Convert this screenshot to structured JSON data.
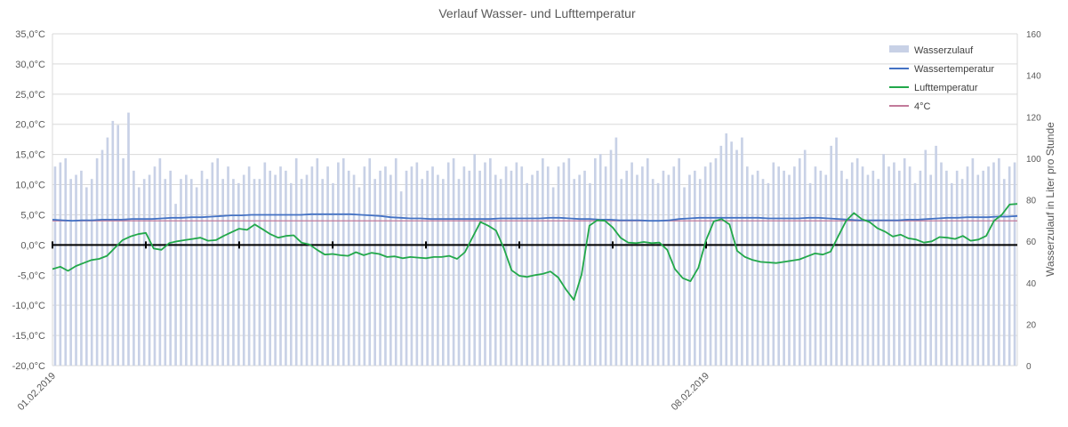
{
  "chart_data": {
    "type": "bar+line",
    "title": "Verlauf Wasser- und Lufttemperatur",
    "xlabel": "",
    "ylabel": "",
    "y2label": "Wasserzulauf in Liter pro Stunde",
    "ylim": [
      -20,
      35
    ],
    "y2lim": [
      0,
      160
    ],
    "y_ticks": [
      "35,0°C",
      "30,0°C",
      "25,0°C",
      "20,0°C",
      "15,0°C",
      "10,0°C",
      "5,0°C",
      "0,0°C",
      "-5,0°C",
      "-10,0°C",
      "-15,0°C",
      "-20,0°C"
    ],
    "y2_ticks": [
      "160",
      "140",
      "120",
      "100",
      "80",
      "60",
      "40",
      "20",
      "0"
    ],
    "x_labels": [
      {
        "label": "01.02.2019",
        "index": 0
      },
      {
        "label": "08.02.2019",
        "index": 168
      }
    ],
    "day_tick_indices": [
      0,
      24,
      48,
      72,
      96,
      120,
      144,
      168
    ],
    "grid": true,
    "legend_position": "top-right",
    "legend": [
      {
        "name": "Wasserzulauf",
        "kind": "bar",
        "color": "#c8d1e6"
      },
      {
        "name": "Wassertemperatur",
        "kind": "line",
        "color": "#4472c4"
      },
      {
        "name": "Lufttemperatur",
        "kind": "line",
        "color": "#22a84a"
      },
      {
        "name": "4°C",
        "kind": "line",
        "color": "#c27a9a"
      }
    ],
    "colors": {
      "bars": "#c8d1e6",
      "water": "#4472c4",
      "air": "#22a84a",
      "ref": "#c27a9a",
      "zero_axis": "#000000",
      "grid": "#d9d9d9"
    },
    "series": [
      {
        "name": "Wasserzulauf",
        "axis": "secondary",
        "unit": "Liter pro Stunde",
        "values": [
          96,
          98,
          100,
          90,
          92,
          94,
          86,
          90,
          100,
          104,
          110,
          118,
          116,
          100,
          122,
          94,
          86,
          90,
          92,
          96,
          100,
          90,
          94,
          78,
          90,
          92,
          90,
          86,
          94,
          90,
          98,
          100,
          90,
          96,
          90,
          88,
          92,
          96,
          90,
          90,
          98,
          94,
          92,
          96,
          94,
          88,
          100,
          90,
          92,
          96,
          100,
          90,
          96,
          88,
          98,
          100,
          94,
          92,
          86,
          96,
          100,
          90,
          94,
          96,
          92,
          100,
          84,
          94,
          96,
          98,
          90,
          94,
          96,
          92,
          90,
          98,
          100,
          90,
          96,
          94,
          102,
          94,
          98,
          100,
          92,
          90,
          96,
          94,
          98,
          96,
          88,
          92,
          94,
          100,
          96,
          86,
          96,
          98,
          100,
          90,
          92,
          94,
          88,
          100,
          102,
          96,
          104,
          110,
          90,
          94,
          98,
          92,
          96,
          100,
          90,
          88,
          94,
          92,
          96,
          100,
          86,
          92,
          94,
          90,
          96,
          98,
          100,
          106,
          112,
          108,
          104,
          110,
          96,
          92,
          94,
          90,
          88,
          98,
          96,
          94,
          92,
          96,
          100,
          104,
          88,
          96,
          94,
          92,
          106,
          110,
          94,
          90,
          98,
          100,
          96,
          92,
          94,
          90,
          102,
          96,
          98,
          94,
          100,
          96,
          88,
          94,
          104,
          92,
          106,
          98,
          94,
          88,
          94,
          90,
          96,
          100,
          92,
          94,
          96,
          98,
          100,
          90,
          96,
          98
        ]
      },
      {
        "name": "Wassertemperatur",
        "axis": "primary",
        "values": [
          4.2,
          4.1,
          4.0,
          4.1,
          4.1,
          4.2,
          4.2,
          4.2,
          4.3,
          4.3,
          4.3,
          4.4,
          4.5,
          4.5,
          4.6,
          4.6,
          4.7,
          4.8,
          4.9,
          4.9,
          5.0,
          5.0,
          5.0,
          5.0,
          5.0,
          5.0,
          5.1,
          5.1,
          5.1,
          5.1,
          5.1,
          5.0,
          4.9,
          4.8,
          4.6,
          4.5,
          4.4,
          4.4,
          4.3,
          4.3,
          4.3,
          4.3,
          4.3,
          4.3,
          4.3,
          4.4,
          4.4,
          4.4,
          4.4,
          4.4,
          4.5,
          4.5,
          4.4,
          4.3,
          4.3,
          4.2,
          4.2,
          4.1,
          4.1,
          4.1,
          4.0,
          4.0,
          4.1,
          4.3,
          4.4,
          4.5,
          4.5,
          4.5,
          4.5,
          4.5,
          4.5,
          4.5,
          4.4,
          4.4,
          4.4,
          4.4,
          4.5,
          4.5,
          4.4,
          4.3,
          4.2,
          4.1,
          4.1,
          4.1,
          4.1,
          4.1,
          4.2,
          4.2,
          4.3,
          4.4,
          4.5,
          4.5,
          4.6,
          4.6,
          4.6,
          4.7,
          4.7,
          4.8
        ]
      },
      {
        "name": "Lufttemperatur",
        "axis": "primary",
        "points": [
          [
            0,
            -4
          ],
          [
            2,
            -3.6
          ],
          [
            4,
            -4.3
          ],
          [
            6,
            -3.5
          ],
          [
            8,
            -3
          ],
          [
            10,
            -2.5
          ],
          [
            12,
            -2.3
          ],
          [
            14,
            -1.8
          ],
          [
            16,
            -0.5
          ],
          [
            18,
            0.8
          ],
          [
            20,
            1.4
          ],
          [
            22,
            1.8
          ],
          [
            24,
            2.0
          ],
          [
            26,
            -0.6
          ],
          [
            28,
            -0.8
          ],
          [
            30,
            0.3
          ],
          [
            32,
            0.6
          ],
          [
            34,
            0.8
          ],
          [
            36,
            1.0
          ],
          [
            38,
            1.2
          ],
          [
            40,
            0.7
          ],
          [
            42,
            0.8
          ],
          [
            44,
            1.5
          ],
          [
            46,
            2.1
          ],
          [
            48,
            2.7
          ],
          [
            50,
            2.5
          ],
          [
            52,
            3.4
          ],
          [
            54,
            2.6
          ],
          [
            56,
            1.8
          ],
          [
            58,
            1.2
          ],
          [
            60,
            1.5
          ],
          [
            62,
            1.6
          ],
          [
            64,
            0.4
          ],
          [
            66,
            0.1
          ],
          [
            68,
            -0.8
          ],
          [
            70,
            -1.6
          ],
          [
            72,
            -1.5
          ],
          [
            74,
            -1.7
          ],
          [
            76,
            -1.8
          ],
          [
            78,
            -1.2
          ],
          [
            80,
            -1.7
          ],
          [
            82,
            -1.3
          ],
          [
            84,
            -1.5
          ],
          [
            86,
            -2.0
          ],
          [
            88,
            -1.9
          ],
          [
            90,
            -2.2
          ],
          [
            92,
            -2.0
          ],
          [
            94,
            -2.1
          ],
          [
            96,
            -2.2
          ],
          [
            98,
            -2.0
          ],
          [
            100,
            -2.0
          ],
          [
            102,
            -1.8
          ],
          [
            104,
            -2.3
          ],
          [
            106,
            -1.2
          ],
          [
            108,
            1.3
          ],
          [
            110,
            3.8
          ],
          [
            112,
            3.2
          ],
          [
            114,
            2.4
          ],
          [
            116,
            -0.5
          ],
          [
            118,
            -4.2
          ],
          [
            120,
            -5.1
          ],
          [
            122,
            -5.3
          ],
          [
            124,
            -5.0
          ],
          [
            126,
            -4.8
          ],
          [
            128,
            -4.4
          ],
          [
            130,
            -5.4
          ],
          [
            132,
            -7.4
          ],
          [
            134,
            -9.1
          ],
          [
            136,
            -4.9
          ],
          [
            138,
            3.2
          ],
          [
            140,
            4.1
          ],
          [
            142,
            4.0
          ],
          [
            144,
            2.9
          ],
          [
            146,
            1.2
          ],
          [
            148,
            0.4
          ],
          [
            150,
            0.3
          ],
          [
            152,
            0.5
          ],
          [
            154,
            0.3
          ],
          [
            156,
            0.4
          ],
          [
            158,
            -0.8
          ],
          [
            160,
            -4.0
          ],
          [
            162,
            -5.5
          ],
          [
            164,
            -6.0
          ],
          [
            166,
            -3.8
          ],
          [
            168,
            0.8
          ],
          [
            170,
            3.9
          ],
          [
            172,
            4.3
          ],
          [
            174,
            3.4
          ],
          [
            176,
            -1.0
          ],
          [
            178,
            -2.0
          ],
          [
            180,
            -2.5
          ],
          [
            182,
            -2.8
          ],
          [
            184,
            -2.9
          ],
          [
            186,
            -3.0
          ],
          [
            188,
            -2.8
          ],
          [
            190,
            -2.6
          ],
          [
            192,
            -2.4
          ],
          [
            194,
            -1.9
          ],
          [
            196,
            -1.4
          ],
          [
            198,
            -1.6
          ],
          [
            200,
            -1.1
          ],
          [
            202,
            1.5
          ],
          [
            204,
            4.0
          ],
          [
            206,
            5.3
          ],
          [
            208,
            4.3
          ],
          [
            210,
            3.8
          ],
          [
            212,
            2.8
          ],
          [
            214,
            2.2
          ],
          [
            216,
            1.4
          ],
          [
            218,
            1.7
          ],
          [
            220,
            1.1
          ],
          [
            222,
            0.9
          ],
          [
            224,
            0.4
          ],
          [
            226,
            0.6
          ],
          [
            228,
            1.3
          ],
          [
            230,
            1.2
          ],
          [
            232,
            1.0
          ],
          [
            234,
            1.5
          ],
          [
            236,
            0.7
          ],
          [
            238,
            0.9
          ],
          [
            240,
            1.5
          ],
          [
            242,
            4.0
          ],
          [
            244,
            5.0
          ],
          [
            246,
            6.7
          ],
          [
            248,
            6.8
          ]
        ]
      },
      {
        "name": "4°C",
        "axis": "primary",
        "values": [
          4.0,
          4.0
        ]
      }
    ]
  }
}
